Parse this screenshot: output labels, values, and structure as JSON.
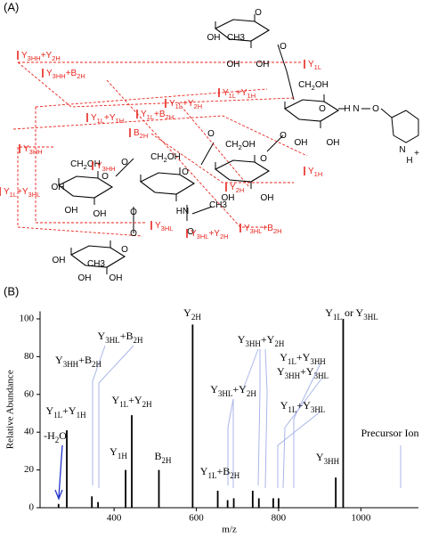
{
  "panel_a": {
    "label": "(A)",
    "color": "#e8251e",
    "fragments": [
      "Y3HH+Y2H",
      "Y3HH+B2H",
      "Y1L",
      "Y1L+Y1H",
      "Y1L+Y1H",
      "Y1L+B2H",
      "Y1L+Y2H",
      "B2H",
      "Y3HH",
      "Y3HH",
      "Y1L+Y3HL",
      "Y2H",
      "Y1H",
      "Y3HL",
      "Y3HL+Y2H",
      "Y3HL+B2H"
    ],
    "atoms": [
      "O",
      "CH3",
      "OH",
      "OH",
      "OH",
      "O",
      "CH2OH",
      "O",
      "H",
      "N",
      "O",
      "OH",
      "OH",
      "O",
      "N",
      "H",
      "+",
      "CH2OH",
      "O",
      "OH",
      "OH",
      "O",
      "CH2OH",
      "O",
      "O",
      "HN",
      "CH3",
      "O",
      "O",
      "CH2OH",
      "O",
      "OH",
      "OH",
      "OH",
      "O",
      "CH3",
      "OH",
      "OH",
      "OH",
      "O"
    ]
  },
  "panel_b_label": "(B)",
  "chart_data": {
    "type": "stem",
    "x_label": "m/z",
    "y_label": "Relative Abundance",
    "x": [
      265,
      285,
      346,
      361,
      428,
      443,
      509,
      591,
      652,
      676,
      691,
      737,
      752,
      787,
      800,
      939,
      957
    ],
    "values": [
      2,
      41,
      6,
      3,
      20,
      49,
      20,
      97,
      9,
      4,
      5,
      9,
      5,
      5,
      5,
      16,
      100
    ],
    "color": "#000000",
    "xlim": [
      220,
      1140
    ],
    "ylim": [
      0,
      104
    ],
    "xticks": [
      400,
      600,
      800,
      1000
    ],
    "yticks": [
      0,
      20,
      40,
      60,
      80,
      100
    ],
    "annotations": [
      "Y3HL+B2H",
      "Y3HH+B2H",
      "Y1L+Y1H",
      "Y1L+Y2H",
      "Y1H",
      "B2H",
      "Y2H",
      "-H2O",
      "Y3HH+Y2H",
      "Y1L+Y3HH",
      "Y3HH+Y3HL",
      "Y3HL+Y2H",
      "Y1L+Y3HL",
      "Y1L+B2H",
      "Y1L or Y3HL",
      "Y3HH",
      "Precursor Ion"
    ],
    "leader_color": "#a9b6e8"
  }
}
